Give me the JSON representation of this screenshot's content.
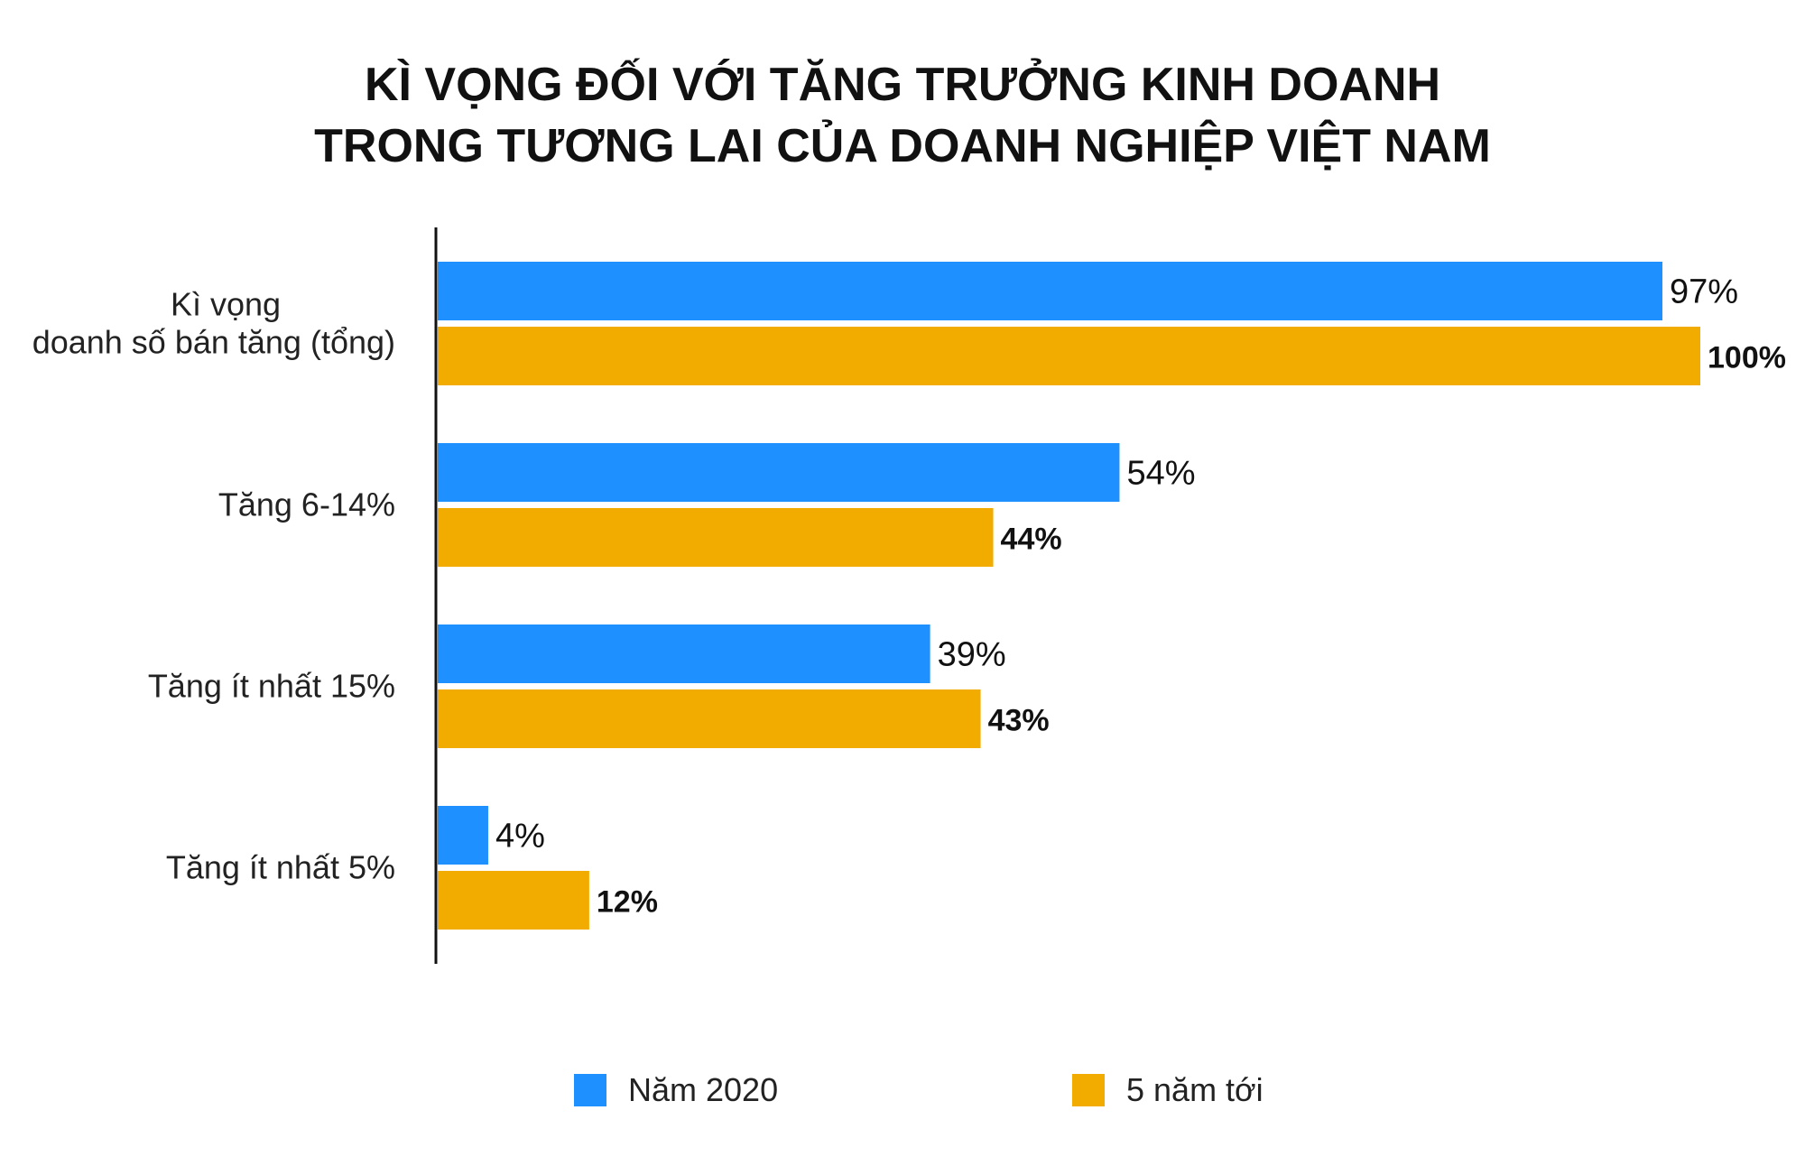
{
  "chart_data": {
    "type": "bar",
    "orientation": "horizontal",
    "title_lines": [
      "KÌ VỌNG ĐỐI VỚI TĂNG TRƯỞNG KINH DOANH",
      "TRONG TƯƠNG LAI CỦA DOANH NGHIỆP VIỆT NAM"
    ],
    "categories": [
      [
        "Kì vọng",
        "doanh số bán tăng (tổng)"
      ],
      [
        "Tăng 6-14%"
      ],
      [
        "Tăng ít nhất 15%"
      ],
      [
        "Tăng ít nhất 5%"
      ]
    ],
    "series": [
      {
        "name": "Năm 2020",
        "color": "#1E90FF",
        "values": [
          97,
          54,
          39,
          4
        ],
        "labels": [
          "97%",
          "54%",
          "39%",
          "4%"
        ],
        "label_bold": false
      },
      {
        "name": "5 năm tới",
        "color": "#F2AC00",
        "values": [
          100,
          44,
          43,
          12
        ],
        "labels": [
          "100%",
          "44%",
          "43%",
          "12%"
        ],
        "label_bold": true
      }
    ],
    "xlim": [
      0,
      100
    ],
    "grid": false,
    "legend_position": "bottom"
  }
}
